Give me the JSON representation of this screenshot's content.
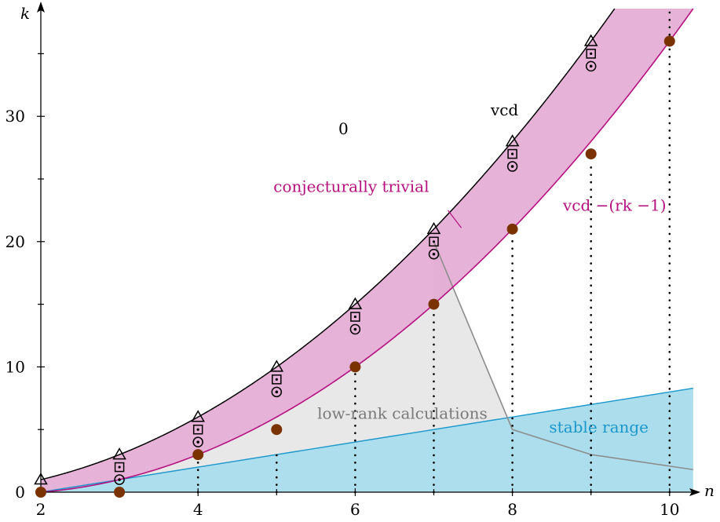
{
  "chart_data": {
    "type": "scatter",
    "title": "",
    "xlabel": "n",
    "ylabel": "k",
    "xlim": [
      2,
      10.3
    ],
    "ylim": [
      0,
      38.5
    ],
    "x_ticks": [
      {
        "value": 2,
        "label": "2"
      },
      {
        "value": 4,
        "label": "4"
      },
      {
        "value": 6,
        "label": "6"
      },
      {
        "value": 8,
        "label": "8"
      },
      {
        "value": 10,
        "label": "10"
      }
    ],
    "y_ticks": [
      {
        "value": 0,
        "label": "0"
      },
      {
        "value": 10,
        "label": "10"
      },
      {
        "value": 20,
        "label": "20"
      },
      {
        "value": 30,
        "label": "30"
      }
    ],
    "y_minor_ticks": [
      5,
      15,
      25,
      35
    ],
    "x_minor_ticks": [
      3,
      5,
      7,
      9
    ],
    "curves": {
      "vcd": {
        "label": "vcd",
        "color": "#000000",
        "values": "n(n-1)/2"
      },
      "vcd_minus_rk": {
        "label": "vcd −(rk −1)",
        "color": "#b5117f",
        "values": "(n-1)(n-2)/2"
      },
      "stable_line": {
        "color": "#1a97cc",
        "from": [
          2,
          0
        ],
        "to": [
          10.3,
          8.3
        ]
      },
      "low_rank_boundary": {
        "color": "#8c8c8c",
        "points": [
          [
            7,
            20
          ],
          [
            8,
            5
          ],
          [
            9,
            3
          ],
          [
            10.3,
            1.8
          ]
        ]
      }
    },
    "regions": [
      {
        "name": "conjecturally-trivial-band",
        "label": "conjecturally trivial",
        "color": "#e3a5d0"
      },
      {
        "name": "low-rank-region",
        "label": "low-rank calculations",
        "color": "#e8e8e8"
      },
      {
        "name": "stable-range-region",
        "label": "stable range",
        "color": "#a9dcec"
      },
      {
        "name": "zero-region",
        "label": "0"
      }
    ],
    "series": [
      {
        "marker": "triangle",
        "points": [
          [
            2,
            1
          ],
          [
            3,
            3
          ],
          [
            4,
            6
          ],
          [
            5,
            10
          ],
          [
            6,
            15
          ],
          [
            7,
            21
          ],
          [
            8,
            28
          ],
          [
            9,
            36
          ]
        ]
      },
      {
        "marker": "dotted-square",
        "points": [
          [
            3,
            2
          ],
          [
            4,
            5
          ],
          [
            5,
            9
          ],
          [
            6,
            14
          ],
          [
            7,
            20
          ],
          [
            8,
            27
          ],
          [
            9,
            35
          ]
        ]
      },
      {
        "marker": "dotted-circle",
        "points": [
          [
            3,
            1
          ],
          [
            4,
            4
          ],
          [
            5,
            8
          ],
          [
            6,
            13
          ],
          [
            7,
            19
          ],
          [
            8,
            26
          ],
          [
            9,
            34
          ]
        ]
      },
      {
        "marker": "filled-circle",
        "color": "#7a3300",
        "points": [
          [
            2,
            0
          ],
          [
            3,
            0
          ],
          [
            4,
            3
          ],
          [
            5,
            5
          ],
          [
            6,
            10
          ],
          [
            7,
            15
          ],
          [
            8,
            21
          ],
          [
            9,
            27
          ],
          [
            10,
            36
          ]
        ]
      }
    ],
    "dotted_verticals": [
      {
        "x": 4,
        "from": 0,
        "to": 2.5
      },
      {
        "x": 5,
        "from": 0,
        "to": 3
      },
      {
        "x": 6,
        "from": 0,
        "to": 9.5
      },
      {
        "x": 7,
        "from": 0,
        "to": 14.5
      },
      {
        "x": 8,
        "from": 0,
        "to": 20.5
      },
      {
        "x": 9,
        "from": 0,
        "to": 26.5
      },
      {
        "x": 10,
        "from": 0,
        "to": 38.5
      }
    ],
    "annotations": [
      {
        "name": "zero-label",
        "text": "0",
        "x": 5.85,
        "y": 29
      },
      {
        "name": "vcd-label",
        "text": "vcd",
        "x": 7.9,
        "y": 30.5
      },
      {
        "name": "vcd-minus-rk-label",
        "text": "vcd −(rk −1)",
        "x": 9.3,
        "y": 22.9
      },
      {
        "name": "conjecturally-trivial-label",
        "text": "conjecturally trivial",
        "x": 5.95,
        "y": 24.4
      },
      {
        "name": "low-rank-calculations-label",
        "text": "low-rank calculations",
        "x": 6.6,
        "y": 6.3
      },
      {
        "name": "stable-range-label",
        "text": "stable range",
        "x": 9.1,
        "y": 5.2
      }
    ],
    "grid": false,
    "legend": "none"
  }
}
